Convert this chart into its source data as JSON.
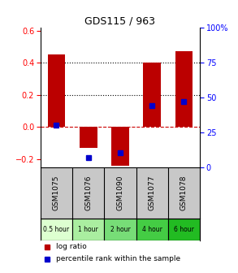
{
  "title": "GDS115 / 963",
  "categories": [
    "GSM1075",
    "GSM1076",
    "GSM1090",
    "GSM1077",
    "GSM1078"
  ],
  "time_labels": [
    "0.5 hour",
    "1 hour",
    "2 hour",
    "4 hour",
    "6 hour"
  ],
  "log_ratios": [
    0.45,
    -0.13,
    -0.24,
    0.4,
    0.47
  ],
  "percentile_ranks": [
    30,
    7,
    10,
    44,
    47
  ],
  "ylim_left": [
    -0.25,
    0.62
  ],
  "yticks_left": [
    -0.2,
    0.0,
    0.2,
    0.4,
    0.6
  ],
  "ylim_right": [
    0,
    100
  ],
  "yticks_right": [
    0,
    25,
    50,
    75,
    100
  ],
  "ytick_labels_right": [
    "0",
    "25",
    "50",
    "75",
    "100%"
  ],
  "bar_color": "#bb0000",
  "dot_color": "#0000cc",
  "time_colors": [
    "#ddffd0",
    "#aaeea0",
    "#77dd77",
    "#44cc44",
    "#22bb22"
  ],
  "gsm_bg": "#c8c8c8",
  "hline_color": "#cc0000",
  "dotted_color": "#000000",
  "bar_width": 0.55
}
